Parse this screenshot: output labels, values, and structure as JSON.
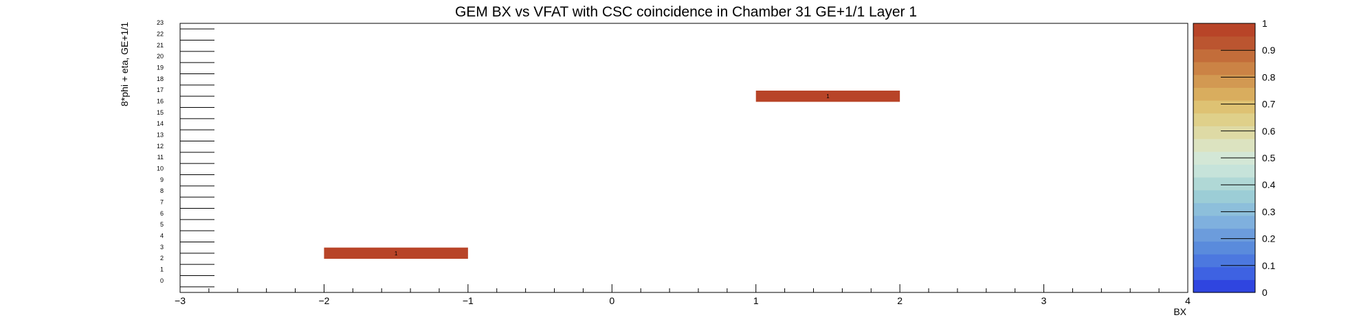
{
  "chart_data": {
    "type": "heatmap",
    "title": "GEM BX vs VFAT with CSC coincidence in Chamber 31 GE+1/1 Layer 1",
    "xlabel": "BX",
    "ylabel": "8*phi + eta, GE+1/1",
    "xlim": [
      -3,
      4
    ],
    "ylim": [
      -0.5,
      23.5
    ],
    "x_ticks": [
      "−3",
      "−2",
      "−1",
      "0",
      "1",
      "2",
      "3",
      "4"
    ],
    "y_ticks": [
      "0",
      "1",
      "2",
      "3",
      "4",
      "5",
      "6",
      "7",
      "8",
      "9",
      "10",
      "11",
      "12",
      "13",
      "14",
      "15",
      "16",
      "17",
      "18",
      "19",
      "20",
      "21",
      "22",
      "23"
    ],
    "cells": [
      {
        "x0": -2,
        "x1": -1,
        "y": 3,
        "value": 1,
        "label": "1"
      },
      {
        "x0": 1,
        "x1": 2,
        "y": 17,
        "value": 1,
        "label": "1"
      }
    ],
    "colorbar": {
      "min": 0,
      "max": 1,
      "tick_labels": [
        "0",
        "0.1",
        "0.2",
        "0.3",
        "0.4",
        "0.5",
        "0.6",
        "0.7",
        "0.8",
        "0.9",
        "1"
      ],
      "colors": [
        "#2f45e0",
        "#3e62e2",
        "#4c78df",
        "#5a8bdc",
        "#6c9cdc",
        "#7fb0de",
        "#8dbfdb",
        "#9ccdd6",
        "#b0d8d6",
        "#c6e3da",
        "#d3e7d6",
        "#dce3c0",
        "#dedaa5",
        "#dfd08a",
        "#dec273",
        "#d9ad5e",
        "#d29952",
        "#cb8345",
        "#c36d3a",
        "#bb5530",
        "#b84428"
      ]
    }
  }
}
